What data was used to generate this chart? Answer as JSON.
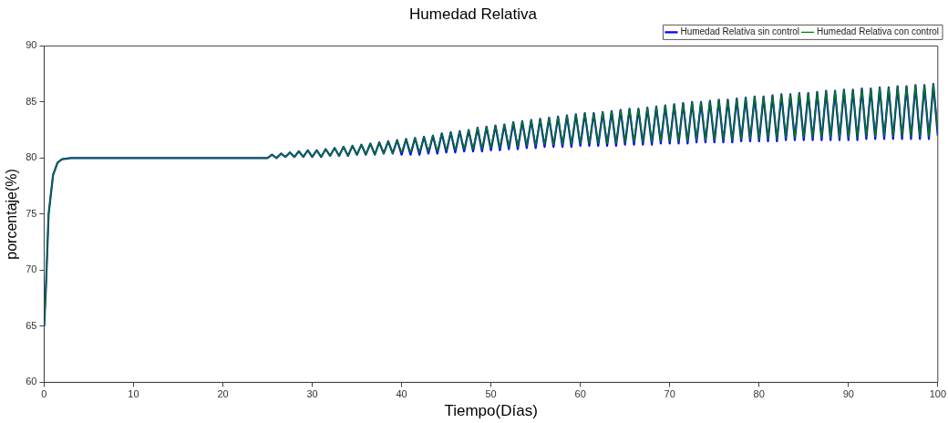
{
  "chart_data": {
    "type": "line",
    "title": "Humedad Relativa",
    "xlabel": "Tiempo(Días)",
    "ylabel": "porcentaje(%)",
    "xlim": [
      0,
      100
    ],
    "xticks": [
      0,
      10,
      20,
      30,
      40,
      50,
      60,
      70,
      80,
      90,
      100
    ],
    "ylim": [
      60,
      90
    ],
    "yticks": [
      60,
      65,
      70,
      75,
      80,
      85,
      90
    ],
    "grid": false,
    "legend": "top right",
    "marker": "none",
    "line_style": "solid",
    "x": [
      0,
      0.2,
      0.5,
      1,
      1.5,
      2,
      3,
      25,
      25.5,
      26,
      26.5,
      27,
      27.5,
      28,
      28.5,
      29,
      29.5,
      30,
      30.5,
      31,
      31.5,
      32,
      32.5,
      33,
      33.5,
      34,
      34.5,
      35,
      35.5,
      36,
      36.5,
      37,
      37.5,
      38,
      38.5,
      39,
      39.5,
      40,
      40.5,
      41,
      41.5,
      42,
      42.5,
      43,
      43.5,
      44,
      44.5,
      45,
      45.5,
      46,
      46.5,
      47,
      47.5,
      48,
      48.5,
      49,
      49.5,
      50,
      50.5,
      51,
      51.5,
      52,
      52.5,
      53,
      53.5,
      54,
      54.5,
      55,
      55.5,
      56,
      56.5,
      57,
      57.5,
      58,
      58.5,
      59,
      59.5,
      60,
      60.5,
      61,
      61.5,
      62,
      62.5,
      63,
      63.5,
      64,
      64.5,
      65,
      65.5,
      66,
      66.5,
      67,
      67.5,
      68,
      68.5,
      69,
      69.5,
      70,
      70.5,
      71,
      71.5,
      72,
      72.5,
      73,
      73.5,
      74,
      74.5,
      75,
      75.5,
      76,
      76.5,
      77,
      77.5,
      78,
      78.5,
      79,
      79.5,
      80,
      80.5,
      81,
      81.5,
      82,
      82.5,
      83,
      83.5,
      84,
      84.5,
      85,
      85.5,
      86,
      86.5,
      87,
      87.5,
      88,
      88.5,
      89,
      89.5,
      90,
      90.5,
      91,
      91.5,
      92,
      92.5,
      93,
      93.5,
      94,
      94.5,
      95,
      95.5,
      96,
      96.5,
      97,
      97.5,
      98,
      98.5,
      99,
      99.5,
      100
    ],
    "series": [
      {
        "name": "Humedad Relativa sin control",
        "color": "#0000ff",
        "values": [
          65,
          68.5,
          75,
          78.5,
          79.6,
          79.9,
          80,
          80.0,
          80.3,
          80.0,
          80.4,
          80.1,
          80.5,
          80.1,
          80.6,
          80.1,
          80.7,
          80.1,
          80.7,
          80.1,
          80.8,
          80.2,
          80.9,
          80.2,
          81.0,
          80.2,
          81.1,
          80.3,
          81.2,
          80.3,
          81.3,
          80.3,
          81.4,
          80.4,
          81.5,
          80.4,
          81.6,
          80.3,
          81.7,
          80.3,
          81.8,
          80.3,
          81.9,
          80.4,
          82.0,
          80.4,
          82.2,
          80.5,
          82.3,
          80.5,
          82.4,
          80.6,
          82.5,
          80.6,
          82.7,
          80.6,
          82.8,
          80.7,
          82.9,
          80.7,
          83.0,
          80.8,
          83.2,
          80.8,
          83.3,
          80.9,
          83.4,
          80.9,
          83.5,
          81.0,
          83.6,
          81.0,
          83.7,
          81.0,
          83.8,
          81.0,
          83.9,
          81.1,
          84.0,
          81.1,
          84.0,
          81.1,
          84.1,
          81.1,
          84.2,
          81.1,
          84.3,
          81.2,
          84.4,
          81.2,
          84.4,
          81.2,
          84.5,
          81.2,
          84.6,
          81.3,
          84.7,
          81.3,
          84.8,
          81.3,
          84.9,
          81.3,
          85.0,
          81.4,
          85.0,
          81.4,
          85.1,
          81.4,
          85.2,
          81.4,
          85.2,
          81.4,
          85.3,
          81.5,
          85.4,
          81.5,
          85.5,
          81.5,
          85.5,
          81.5,
          85.6,
          81.5,
          85.7,
          81.6,
          85.7,
          81.6,
          85.8,
          81.6,
          85.8,
          81.6,
          85.9,
          81.6,
          86.0,
          81.6,
          86.0,
          81.6,
          86.1,
          81.6,
          86.1,
          81.6,
          86.2,
          81.7,
          86.2,
          81.7,
          86.3,
          81.7,
          86.3,
          81.7,
          86.4,
          81.7,
          86.4,
          81.7,
          86.5,
          81.7,
          86.5,
          81.7,
          86.6,
          82.0
        ]
      },
      {
        "name": "Humedad Relativa con control",
        "color": "#008000",
        "values": [
          65,
          68.5,
          75,
          78.5,
          79.6,
          79.9,
          80,
          80.0,
          80.3,
          80.0,
          80.4,
          80.1,
          80.5,
          80.1,
          80.6,
          80.1,
          80.7,
          80.1,
          80.7,
          80.1,
          80.8,
          80.2,
          80.9,
          80.2,
          81.0,
          80.2,
          81.1,
          80.3,
          81.2,
          80.3,
          81.3,
          80.3,
          81.4,
          80.4,
          81.5,
          80.4,
          81.6,
          80.5,
          81.7,
          80.5,
          81.8,
          80.5,
          81.9,
          80.6,
          82.0,
          80.6,
          82.2,
          80.7,
          82.3,
          80.7,
          82.4,
          80.8,
          82.5,
          80.8,
          82.7,
          80.8,
          82.8,
          80.9,
          82.9,
          80.9,
          83.0,
          81.0,
          83.2,
          81.0,
          83.3,
          81.1,
          83.4,
          81.1,
          83.5,
          81.2,
          83.6,
          81.2,
          83.7,
          81.2,
          83.8,
          81.2,
          83.9,
          81.3,
          84.0,
          81.3,
          84.0,
          81.3,
          84.1,
          81.3,
          84.2,
          81.3,
          84.3,
          81.4,
          84.4,
          81.4,
          84.4,
          81.4,
          84.5,
          81.4,
          84.6,
          81.5,
          84.7,
          81.5,
          84.8,
          81.5,
          84.9,
          81.5,
          85.0,
          81.6,
          85.0,
          81.6,
          85.1,
          81.6,
          85.2,
          81.6,
          85.2,
          81.6,
          85.3,
          81.7,
          85.4,
          81.7,
          85.5,
          81.7,
          85.5,
          81.7,
          85.6,
          81.7,
          85.7,
          81.8,
          85.7,
          81.8,
          85.8,
          81.8,
          85.8,
          81.8,
          85.9,
          81.8,
          86.0,
          81.8,
          86.0,
          81.8,
          86.1,
          81.8,
          86.1,
          81.8,
          86.2,
          81.9,
          86.2,
          81.9,
          86.3,
          81.9,
          86.3,
          81.9,
          86.4,
          81.9,
          86.4,
          81.9,
          86.5,
          81.9,
          86.5,
          81.9,
          86.6,
          82.2
        ]
      }
    ]
  }
}
